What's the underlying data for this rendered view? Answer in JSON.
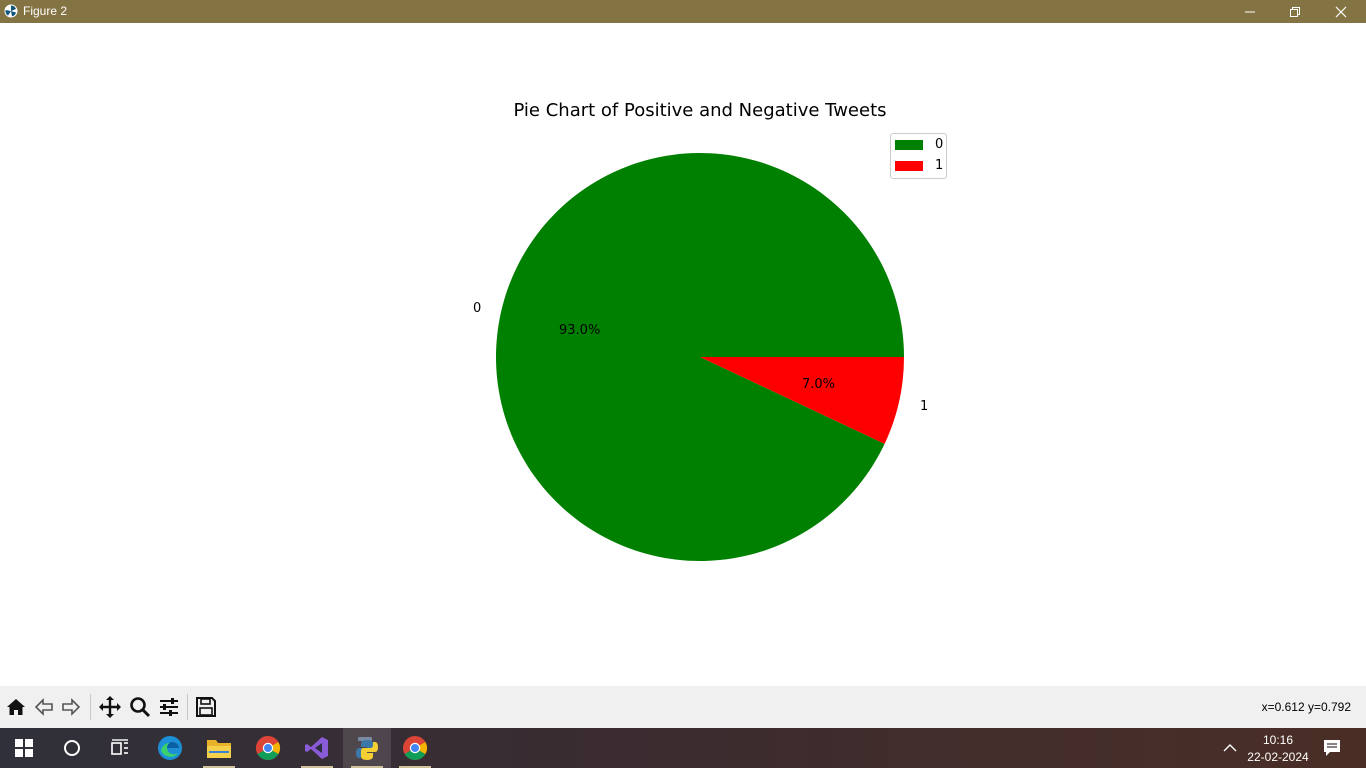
{
  "window": {
    "title": "Figure 2"
  },
  "chart_data": {
    "type": "pie",
    "title": "Pie Chart of Positive and Negative Tweets",
    "categories": [
      "0",
      "1"
    ],
    "values": [
      93.0,
      7.0
    ],
    "percent_labels": [
      "93.0%",
      "7.0%"
    ],
    "colors": [
      "#008000",
      "#ff0000"
    ],
    "legend": {
      "entries": [
        "0",
        "1"
      ],
      "placement": "upper-right"
    }
  },
  "toolbar": {
    "tools": [
      "home",
      "back",
      "forward",
      "pan",
      "zoom",
      "configure-subplots",
      "save"
    ],
    "coords_text": "x=0.612 y=0.792"
  },
  "taskbar": {
    "apps": [
      "start",
      "search",
      "task-view",
      "edge",
      "file-explorer",
      "chrome",
      "visual-studio",
      "python",
      "chrome"
    ],
    "time": "10:16",
    "date": "22-02-2024"
  }
}
